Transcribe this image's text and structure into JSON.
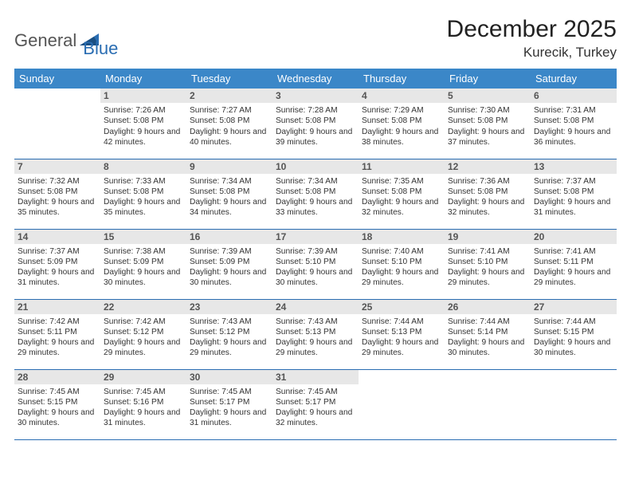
{
  "brand": {
    "part1": "General",
    "part2": "Blue"
  },
  "title": "December 2025",
  "location": "Kurecik, Turkey",
  "colors": {
    "header_bg": "#3b87c8",
    "header_text": "#ffffff",
    "daynum_bg": "#e7e7e7",
    "border": "#2a6db2",
    "brand_accent": "#2a6db2"
  },
  "day_headers": [
    "Sunday",
    "Monday",
    "Tuesday",
    "Wednesday",
    "Thursday",
    "Friday",
    "Saturday"
  ],
  "weeks": [
    [
      null,
      {
        "n": "1",
        "sr": "7:26 AM",
        "ss": "5:08 PM",
        "dl": "9 hours and 42 minutes."
      },
      {
        "n": "2",
        "sr": "7:27 AM",
        "ss": "5:08 PM",
        "dl": "9 hours and 40 minutes."
      },
      {
        "n": "3",
        "sr": "7:28 AM",
        "ss": "5:08 PM",
        "dl": "9 hours and 39 minutes."
      },
      {
        "n": "4",
        "sr": "7:29 AM",
        "ss": "5:08 PM",
        "dl": "9 hours and 38 minutes."
      },
      {
        "n": "5",
        "sr": "7:30 AM",
        "ss": "5:08 PM",
        "dl": "9 hours and 37 minutes."
      },
      {
        "n": "6",
        "sr": "7:31 AM",
        "ss": "5:08 PM",
        "dl": "9 hours and 36 minutes."
      }
    ],
    [
      {
        "n": "7",
        "sr": "7:32 AM",
        "ss": "5:08 PM",
        "dl": "9 hours and 35 minutes."
      },
      {
        "n": "8",
        "sr": "7:33 AM",
        "ss": "5:08 PM",
        "dl": "9 hours and 35 minutes."
      },
      {
        "n": "9",
        "sr": "7:34 AM",
        "ss": "5:08 PM",
        "dl": "9 hours and 34 minutes."
      },
      {
        "n": "10",
        "sr": "7:34 AM",
        "ss": "5:08 PM",
        "dl": "9 hours and 33 minutes."
      },
      {
        "n": "11",
        "sr": "7:35 AM",
        "ss": "5:08 PM",
        "dl": "9 hours and 32 minutes."
      },
      {
        "n": "12",
        "sr": "7:36 AM",
        "ss": "5:08 PM",
        "dl": "9 hours and 32 minutes."
      },
      {
        "n": "13",
        "sr": "7:37 AM",
        "ss": "5:08 PM",
        "dl": "9 hours and 31 minutes."
      }
    ],
    [
      {
        "n": "14",
        "sr": "7:37 AM",
        "ss": "5:09 PM",
        "dl": "9 hours and 31 minutes."
      },
      {
        "n": "15",
        "sr": "7:38 AM",
        "ss": "5:09 PM",
        "dl": "9 hours and 30 minutes."
      },
      {
        "n": "16",
        "sr": "7:39 AM",
        "ss": "5:09 PM",
        "dl": "9 hours and 30 minutes."
      },
      {
        "n": "17",
        "sr": "7:39 AM",
        "ss": "5:10 PM",
        "dl": "9 hours and 30 minutes."
      },
      {
        "n": "18",
        "sr": "7:40 AM",
        "ss": "5:10 PM",
        "dl": "9 hours and 29 minutes."
      },
      {
        "n": "19",
        "sr": "7:41 AM",
        "ss": "5:10 PM",
        "dl": "9 hours and 29 minutes."
      },
      {
        "n": "20",
        "sr": "7:41 AM",
        "ss": "5:11 PM",
        "dl": "9 hours and 29 minutes."
      }
    ],
    [
      {
        "n": "21",
        "sr": "7:42 AM",
        "ss": "5:11 PM",
        "dl": "9 hours and 29 minutes."
      },
      {
        "n": "22",
        "sr": "7:42 AM",
        "ss": "5:12 PM",
        "dl": "9 hours and 29 minutes."
      },
      {
        "n": "23",
        "sr": "7:43 AM",
        "ss": "5:12 PM",
        "dl": "9 hours and 29 minutes."
      },
      {
        "n": "24",
        "sr": "7:43 AM",
        "ss": "5:13 PM",
        "dl": "9 hours and 29 minutes."
      },
      {
        "n": "25",
        "sr": "7:44 AM",
        "ss": "5:13 PM",
        "dl": "9 hours and 29 minutes."
      },
      {
        "n": "26",
        "sr": "7:44 AM",
        "ss": "5:14 PM",
        "dl": "9 hours and 30 minutes."
      },
      {
        "n": "27",
        "sr": "7:44 AM",
        "ss": "5:15 PM",
        "dl": "9 hours and 30 minutes."
      }
    ],
    [
      {
        "n": "28",
        "sr": "7:45 AM",
        "ss": "5:15 PM",
        "dl": "9 hours and 30 minutes."
      },
      {
        "n": "29",
        "sr": "7:45 AM",
        "ss": "5:16 PM",
        "dl": "9 hours and 31 minutes."
      },
      {
        "n": "30",
        "sr": "7:45 AM",
        "ss": "5:17 PM",
        "dl": "9 hours and 31 minutes."
      },
      {
        "n": "31",
        "sr": "7:45 AM",
        "ss": "5:17 PM",
        "dl": "9 hours and 32 minutes."
      },
      null,
      null,
      null
    ]
  ],
  "labels": {
    "sunrise": "Sunrise:",
    "sunset": "Sunset:",
    "daylight": "Daylight:"
  }
}
